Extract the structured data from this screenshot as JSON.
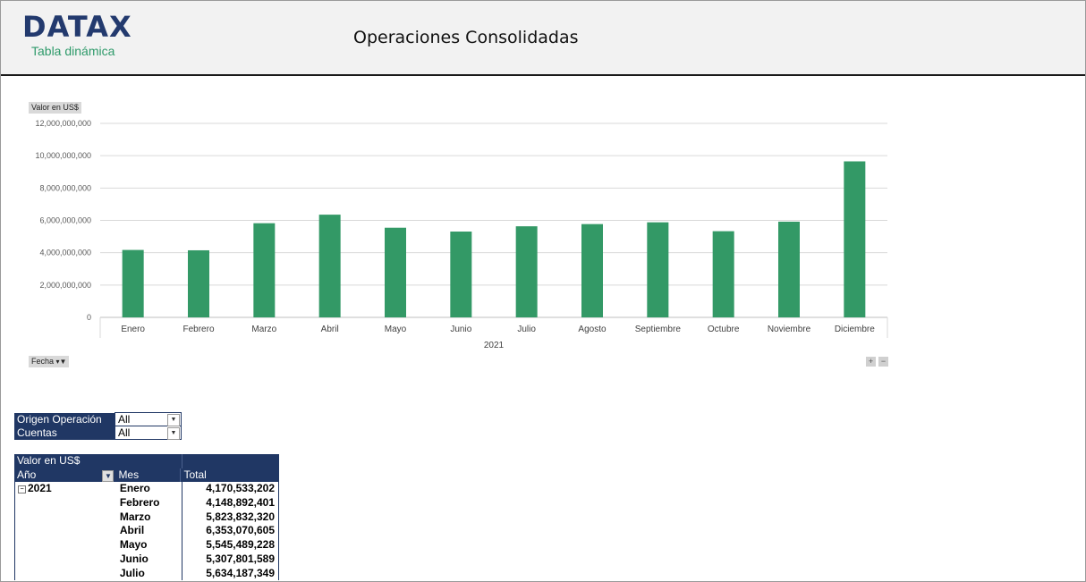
{
  "header": {
    "logo_text": "DATAX",
    "logo_subtitle": "Tabla dinámica",
    "title": "Operaciones Consolidadas"
  },
  "chart_buttons": {
    "value_field": "Valor en US$",
    "date_field": "Fecha",
    "expand": "+",
    "collapse": "−"
  },
  "chart_data": {
    "type": "bar",
    "categories": [
      "Enero",
      "Febrero",
      "Marzo",
      "Abril",
      "Mayo",
      "Junio",
      "Julio",
      "Agosto",
      "Septiembre",
      "Octubre",
      "Noviembre",
      "Diciembre"
    ],
    "values": [
      4170533202,
      4148892401,
      5823832320,
      6353070605,
      5545489228,
      5307801589,
      5634187349,
      5770000000,
      5880000000,
      5330000000,
      5920000000,
      9650000000
    ],
    "ylim": [
      0,
      12000000000
    ],
    "yticks": [
      "0",
      "2,000,000,000",
      "4,000,000,000",
      "6,000,000,000",
      "8,000,000,000",
      "10,000,000,000",
      "12,000,000,000"
    ],
    "xgroup_label": "2021",
    "bar_color": "#339966",
    "grid": true
  },
  "slicers": [
    {
      "label": "Origen Operación",
      "value": "All"
    },
    {
      "label": "Cuentas",
      "value": "All"
    }
  ],
  "pivot": {
    "value_header": "Valor en US$",
    "col_year": "Año",
    "col_month": "Mes",
    "col_total": "Total",
    "year": "2021",
    "rows": [
      {
        "month": "Enero",
        "total": "4,170,533,202"
      },
      {
        "month": "Febrero",
        "total": "4,148,892,401"
      },
      {
        "month": "Marzo",
        "total": "5,823,832,320"
      },
      {
        "month": "Abril",
        "total": "6,353,070,605"
      },
      {
        "month": "Mayo",
        "total": "5,545,489,228"
      },
      {
        "month": "Junio",
        "total": "5,307,801,589"
      },
      {
        "month": "Julio",
        "total": "5,634,187,349"
      }
    ]
  }
}
